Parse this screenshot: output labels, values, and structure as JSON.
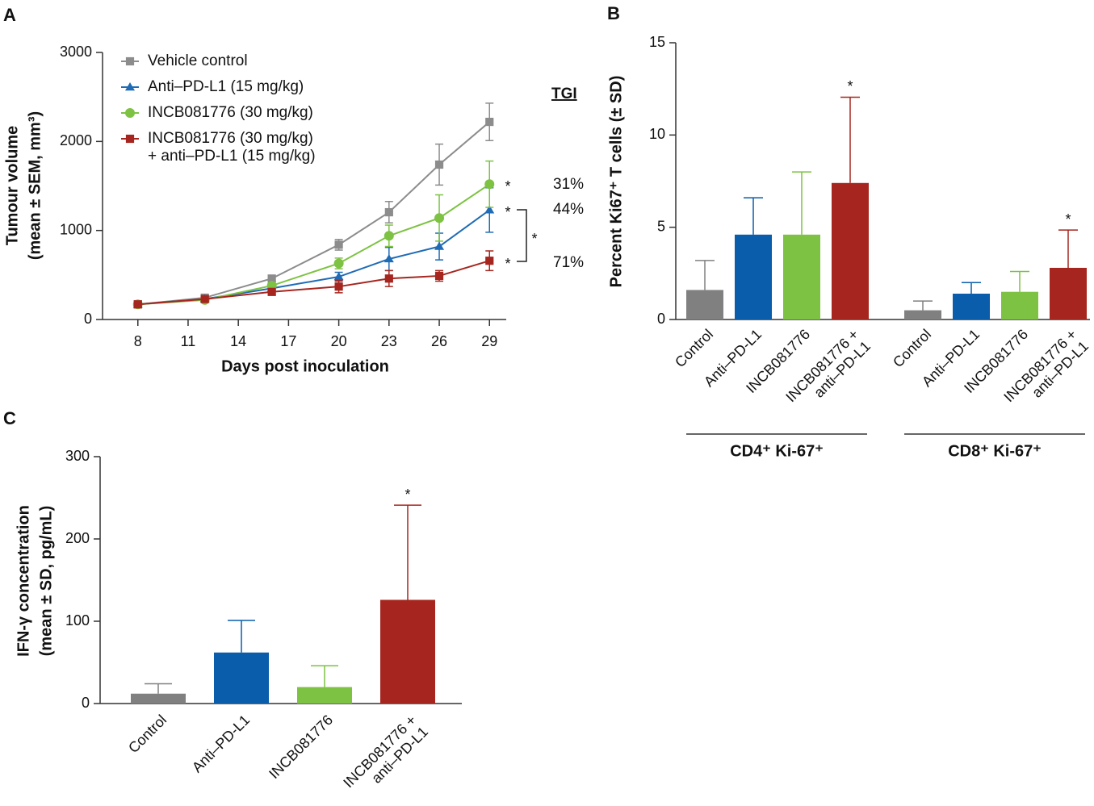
{
  "chart_data": [
    {
      "type": "line",
      "panel": "A",
      "xlabel": "Days post inoculation",
      "ylabel": [
        "Tumour volume",
        "(mean ± SEM, mm³)"
      ],
      "x": [
        8,
        12,
        16,
        20,
        23,
        26,
        29
      ],
      "xlim": [
        7,
        30
      ],
      "xticks": [
        8,
        11,
        14,
        17,
        20,
        23,
        26,
        29
      ],
      "ylim": [
        0,
        3000
      ],
      "yticks": [
        0,
        1000,
        2000,
        3000
      ],
      "series": [
        {
          "name": "Vehicle control",
          "color": "#8c8c8c",
          "marker": "square",
          "values": [
            170,
            245,
            460,
            840,
            1205,
            1740,
            2220
          ],
          "errors": [
            20,
            25,
            30,
            60,
            120,
            230,
            210
          ]
        },
        {
          "name": "Anti–PD-L1 (15 mg/kg)",
          "color": "#1f6bb5",
          "marker": "triangle",
          "values": [
            170,
            230,
            350,
            480,
            680,
            820,
            1230
          ],
          "errors": [
            20,
            25,
            30,
            50,
            130,
            150,
            250
          ]
        },
        {
          "name": "INCB081776 (30 mg/kg)",
          "color": "#7dc242",
          "marker": "circle",
          "values": [
            170,
            220,
            380,
            630,
            940,
            1140,
            1520
          ],
          "errors": [
            20,
            25,
            30,
            60,
            120,
            260,
            260
          ]
        },
        {
          "name": "INCB081776 (30 mg/kg)\n+ anti–PD-L1 (15 mg/kg)",
          "color": "#a6261f",
          "marker": "square",
          "values": [
            170,
            230,
            310,
            370,
            460,
            490,
            660
          ],
          "errors": [
            20,
            25,
            30,
            70,
            90,
            60,
            110
          ]
        }
      ],
      "annotations": [
        "TGI",
        "31%",
        "44%",
        "71%"
      ],
      "significance_label": "*"
    },
    {
      "type": "grouped_bar",
      "panel": "B",
      "ylabel": "Percent Ki67⁺ T cells (± SD)",
      "categories": [
        "Control",
        "Anti–PD-L1",
        "INCB081776",
        "INCB081776 +\nanti–PD-L1"
      ],
      "colors": [
        "#808080",
        "#0a5dab",
        "#7dc242",
        "#a6261f"
      ],
      "ylim": [
        0,
        15
      ],
      "yticks": [
        0,
        5,
        10,
        15
      ],
      "groups": [
        {
          "name": "CD4⁺ Ki-67⁺",
          "values": [
            1.6,
            4.6,
            4.6,
            7.4
          ],
          "errors": [
            1.6,
            2.0,
            3.4,
            4.65
          ]
        },
        {
          "name": "CD8⁺ Ki-67⁺",
          "values": [
            0.5,
            1.4,
            1.5,
            2.8
          ],
          "errors": [
            0.5,
            0.6,
            1.1,
            2.05
          ]
        }
      ],
      "significance_label": "*"
    },
    {
      "type": "bar",
      "panel": "C",
      "ylabel": [
        "IFN-γ concentration",
        "(mean ± SD, pg/mL)"
      ],
      "categories": [
        "Control",
        "Anti–PD-L1",
        "INCB081776",
        "INCB081776 +\nanti–PD-L1"
      ],
      "colors": [
        "#808080",
        "#0a5dab",
        "#7dc242",
        "#a6261f"
      ],
      "values": [
        12,
        62,
        20,
        126
      ],
      "errors": [
        12,
        39,
        26,
        115
      ],
      "ylim": [
        0,
        300
      ],
      "yticks": [
        0,
        100,
        200,
        300
      ],
      "significance_label": "*"
    }
  ]
}
